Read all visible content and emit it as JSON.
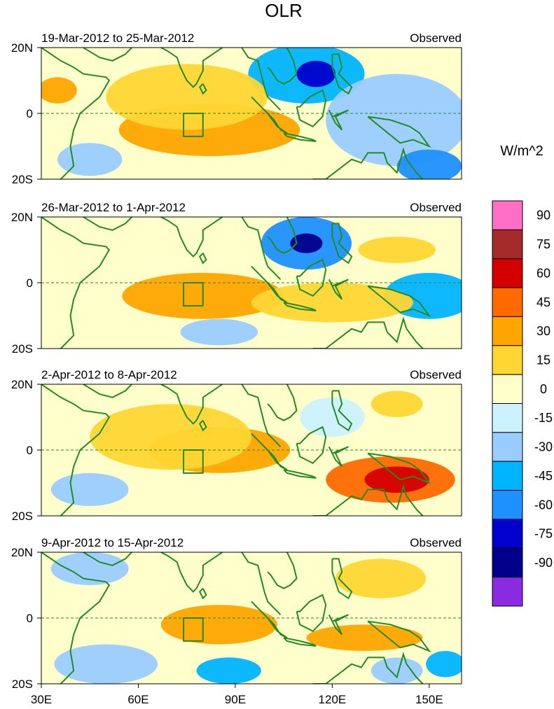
{
  "title": "OLR",
  "units": "W/m^2",
  "colorbar": {
    "labels": [
      "90",
      "75",
      "60",
      "45",
      "30",
      "15",
      "0",
      "-15",
      "-30",
      "-45",
      "-60",
      "-75",
      "-90"
    ],
    "colors": [
      "#ff6ec7",
      "#a52a2a",
      "#d40000",
      "#ff6a00",
      "#ffa500",
      "#ffd633",
      "#ffffcc",
      "#ccf2ff",
      "#99ccff",
      "#00b4ff",
      "#1e90ff",
      "#0000cc",
      "#00008b",
      "#8a2be2"
    ]
  },
  "ocean_color": "#ffffcc",
  "coast_color": "#228b22",
  "chart_data": [
    {
      "type": "heatmap",
      "title": "19-Mar-2012 to 25-Mar-2012",
      "subtitle": "Observed",
      "y_ticks": [
        "20N",
        "0",
        "20S"
      ],
      "x_ticks": [],
      "blobs": [
        {
          "lon": 112,
          "lat": 12,
          "rx": 18,
          "ry": 9,
          "level": "-45"
        },
        {
          "lon": 115,
          "lat": 12,
          "rx": 6,
          "ry": 4,
          "level": "-75"
        },
        {
          "lon": 140,
          "lat": -2,
          "rx": 22,
          "ry": 14,
          "level": "-30"
        },
        {
          "lon": 150,
          "lat": -16,
          "rx": 10,
          "ry": 5,
          "level": "-60"
        },
        {
          "lon": 82,
          "lat": -5,
          "rx": 28,
          "ry": 8,
          "level": "30"
        },
        {
          "lon": 75,
          "lat": 5,
          "rx": 25,
          "ry": 10,
          "level": "15"
        },
        {
          "lon": 35,
          "lat": 7,
          "rx": 6,
          "ry": 4,
          "level": "30"
        },
        {
          "lon": 45,
          "lat": -14,
          "rx": 10,
          "ry": 5,
          "level": "-30"
        }
      ]
    },
    {
      "type": "heatmap",
      "title": "26-Mar-2012 to 1-Apr-2012",
      "subtitle": "Observed",
      "y_ticks": [
        "20N",
        "0",
        "20S"
      ],
      "x_ticks": [],
      "blobs": [
        {
          "lon": 112,
          "lat": 12,
          "rx": 14,
          "ry": 8,
          "level": "-60"
        },
        {
          "lon": 112,
          "lat": 12,
          "rx": 5,
          "ry": 3,
          "level": "-90"
        },
        {
          "lon": 150,
          "lat": -4,
          "rx": 14,
          "ry": 7,
          "level": "-45"
        },
        {
          "lon": 85,
          "lat": -15,
          "rx": 12,
          "ry": 4,
          "level": "-30"
        },
        {
          "lon": 80,
          "lat": -4,
          "rx": 25,
          "ry": 7,
          "level": "30"
        },
        {
          "lon": 120,
          "lat": -6,
          "rx": 25,
          "ry": 6,
          "level": "15"
        },
        {
          "lon": 140,
          "lat": 10,
          "rx": 12,
          "ry": 4,
          "level": "15"
        }
      ]
    },
    {
      "type": "heatmap",
      "title": "2-Apr-2012 to 8-Apr-2012",
      "subtitle": "Observed",
      "y_ticks": [
        "20N",
        "0",
        "20S"
      ],
      "x_ticks": [],
      "blobs": [
        {
          "lon": 138,
          "lat": -9,
          "rx": 20,
          "ry": 7,
          "level": "45"
        },
        {
          "lon": 140,
          "lat": -9,
          "rx": 10,
          "ry": 4,
          "level": "60"
        },
        {
          "lon": 85,
          "lat": 0,
          "rx": 22,
          "ry": 7,
          "level": "30"
        },
        {
          "lon": 70,
          "lat": 4,
          "rx": 25,
          "ry": 10,
          "level": "15"
        },
        {
          "lon": 120,
          "lat": 10,
          "rx": 10,
          "ry": 6,
          "level": "-15"
        },
        {
          "lon": 45,
          "lat": -12,
          "rx": 12,
          "ry": 5,
          "level": "-30"
        },
        {
          "lon": 140,
          "lat": 14,
          "rx": 8,
          "ry": 4,
          "level": "15"
        }
      ]
    },
    {
      "type": "heatmap",
      "title": "9-Apr-2012 to 15-Apr-2012",
      "subtitle": "Observed",
      "y_ticks": [
        "20N",
        "0",
        "20S"
      ],
      "x_ticks": [
        "30E",
        "60E",
        "90E",
        "120E",
        "150E"
      ],
      "blobs": [
        {
          "lon": 45,
          "lat": 15,
          "rx": 12,
          "ry": 5,
          "level": "-30"
        },
        {
          "lon": 50,
          "lat": -14,
          "rx": 16,
          "ry": 6,
          "level": "-30"
        },
        {
          "lon": 88,
          "lat": -16,
          "rx": 10,
          "ry": 4,
          "level": "-45"
        },
        {
          "lon": 85,
          "lat": -2,
          "rx": 18,
          "ry": 6,
          "level": "30"
        },
        {
          "lon": 130,
          "lat": -6,
          "rx": 18,
          "ry": 4,
          "level": "30"
        },
        {
          "lon": 135,
          "lat": 12,
          "rx": 14,
          "ry": 6,
          "level": "15"
        },
        {
          "lon": 140,
          "lat": -16,
          "rx": 8,
          "ry": 4,
          "level": "-30"
        },
        {
          "lon": 155,
          "lat": -14,
          "rx": 6,
          "ry": 4,
          "level": "-45"
        }
      ]
    }
  ]
}
